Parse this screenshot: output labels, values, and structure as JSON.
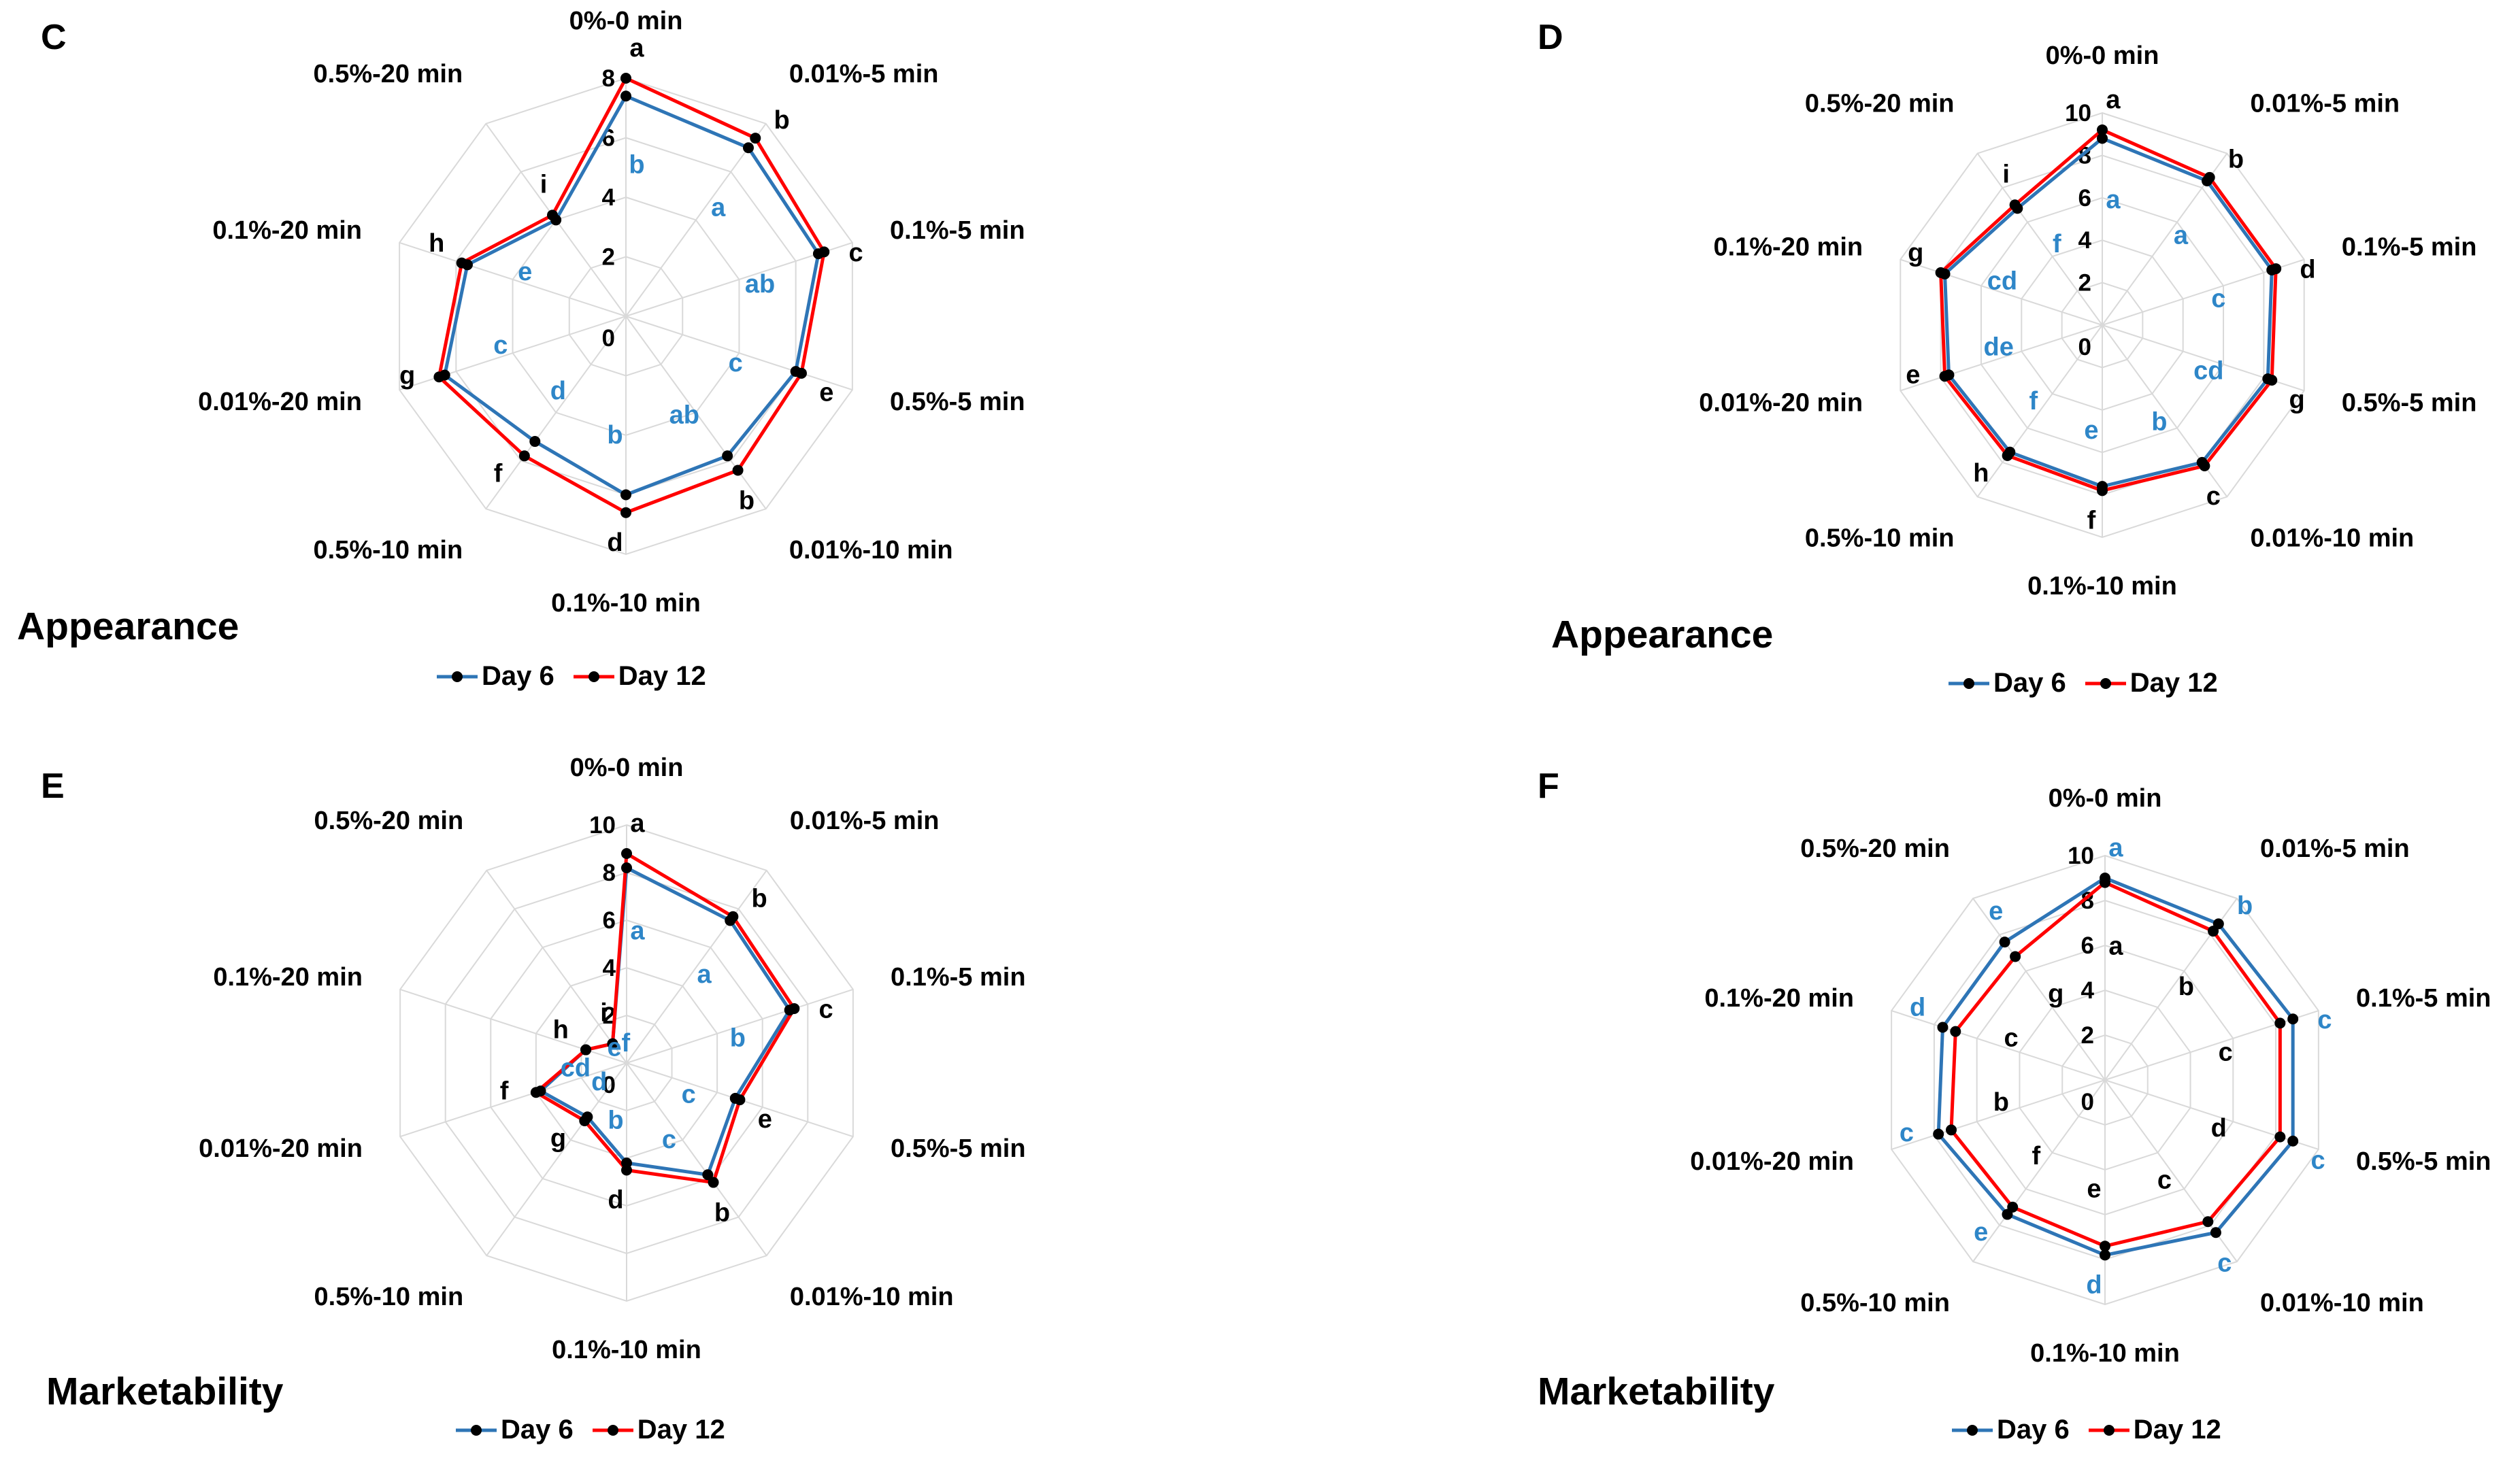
{
  "colors": {
    "day6": "#2E75B6",
    "day12": "#FF0000",
    "sig_letter_blue": "#2E86C8",
    "grid": "#D9D9D9",
    "point": "#000000"
  },
  "chart_data": [
    {
      "panel_label": "C",
      "type": "radar",
      "title": "Appearance",
      "axis_max": 8,
      "ticks": [
        0,
        2,
        4,
        6,
        8
      ],
      "categories": [
        "0%-0 min",
        "0.01%-5 min",
        "0.1%-5 min",
        "0.5%-5 min",
        "0.01%-10 min",
        "0.1%-10 min",
        "0.5%-10 min",
        "0.01%-20 min",
        "0.1%-20 min",
        "0.5%-20 min"
      ],
      "series": [
        {
          "name": "Day 6",
          "color": "#2E75B6",
          "values": [
            7.4,
            7.0,
            6.8,
            6.0,
            5.8,
            6.0,
            5.2,
            6.4,
            5.6,
            4.0
          ]
        },
        {
          "name": "Day 12",
          "color": "#FF0000",
          "values": [
            8.0,
            7.4,
            7.0,
            6.2,
            6.4,
            6.6,
            5.8,
            6.6,
            5.8,
            4.2
          ]
        }
      ],
      "sig_letters_day12": [
        "a",
        "b",
        "c",
        "e",
        "b",
        "d",
        "f",
        "g",
        "h",
        "i"
      ],
      "sig_letters_day6": [
        "b",
        "a",
        "ab",
        "c",
        "ab",
        "b",
        "d",
        "c",
        "e",
        ""
      ]
    },
    {
      "panel_label": "D",
      "type": "radar",
      "title": "Appearance",
      "axis_max": 10,
      "ticks": [
        0,
        2,
        4,
        6,
        8,
        10
      ],
      "categories": [
        "0%-0 min",
        "0.01%-5 min",
        "0.1%-5 min",
        "0.5%-5 min",
        "0.01%-10 min",
        "0.1%-10 min",
        "0.5%-10 min",
        "0.01%-20 min",
        "0.1%-20 min",
        "0.5%-20 min"
      ],
      "series": [
        {
          "name": "Day 6",
          "color": "#2E75B6",
          "values": [
            8.8,
            8.4,
            8.4,
            8.2,
            8.0,
            7.6,
            7.4,
            7.6,
            7.8,
            6.8
          ]
        },
        {
          "name": "Day 12",
          "color": "#FF0000",
          "values": [
            9.2,
            8.6,
            8.6,
            8.4,
            8.2,
            7.8,
            7.6,
            7.8,
            8.0,
            7.0
          ]
        }
      ],
      "sig_letters_day12": [
        "a",
        "b",
        "d",
        "g",
        "c",
        "f",
        "h",
        "e",
        "g",
        "i"
      ],
      "sig_letters_day6": [
        "a",
        "a",
        "c",
        "cd",
        "b",
        "e",
        "f",
        "de",
        "cd",
        "f"
      ]
    },
    {
      "panel_label": "E",
      "type": "radar",
      "title": "Marketability",
      "axis_max": 10,
      "ticks": [
        0,
        2,
        4,
        6,
        8,
        10
      ],
      "categories": [
        "0%-0 min",
        "0.01%-5 min",
        "0.1%-5 min",
        "0.5%-5 min",
        "0.01%-10 min",
        "0.1%-10 min",
        "0.5%-10 min",
        "0.01%-20 min",
        "0.1%-20 min",
        "0.5%-20 min"
      ],
      "series": [
        {
          "name": "Day 6",
          "color": "#2E75B6",
          "values": [
            8.2,
            7.4,
            7.2,
            4.8,
            5.8,
            4.2,
            2.8,
            3.8,
            1.8,
            1.0
          ]
        },
        {
          "name": "Day 12",
          "color": "#FF0000",
          "values": [
            8.8,
            7.6,
            7.4,
            5.0,
            6.2,
            4.5,
            3.0,
            4.0,
            1.8,
            1.0
          ]
        }
      ],
      "sig_letters_day12": [
        "a",
        "b",
        "c",
        "e",
        "b",
        "d",
        "g",
        "f",
        "h",
        "i"
      ],
      "sig_letters_day6": [
        "a",
        "a",
        "b",
        "c",
        "c",
        "b",
        "d",
        "cd",
        "e",
        "f"
      ]
    },
    {
      "panel_label": "F",
      "type": "radar",
      "title": "Marketability",
      "axis_max": 10,
      "ticks": [
        0,
        2,
        4,
        6,
        8,
        10
      ],
      "categories": [
        "0%-0 min",
        "0.01%-5 min",
        "0.1%-5 min",
        "0.5%-5 min",
        "0.01%-10 min",
        "0.1%-10 min",
        "0.5%-10 min",
        "0.01%-20 min",
        "0.1%-20 min",
        "0.5%-20 min"
      ],
      "series": [
        {
          "name": "Day 6",
          "color": "#2E75B6",
          "values": [
            9.0,
            8.6,
            8.8,
            8.8,
            8.4,
            7.8,
            7.4,
            7.8,
            7.6,
            7.6
          ]
        },
        {
          "name": "Day 12",
          "color": "#FF0000",
          "values": [
            8.8,
            8.2,
            8.2,
            8.2,
            7.8,
            7.4,
            7.0,
            7.2,
            7.0,
            6.8
          ]
        }
      ],
      "sig_letters_day12": [
        "a",
        "b",
        "c",
        "d",
        "c",
        "e",
        "f",
        "b",
        "c",
        "g"
      ],
      "sig_letters_day6": [
        "a",
        "b",
        "c",
        "c",
        "c",
        "d",
        "e",
        "c",
        "d",
        "e"
      ]
    }
  ]
}
